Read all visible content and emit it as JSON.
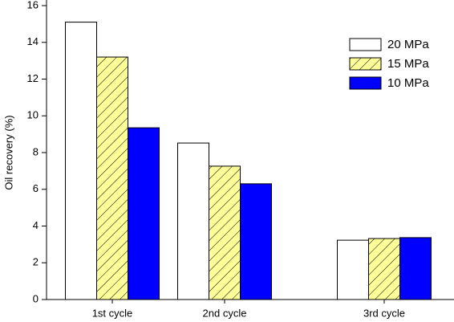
{
  "chart_data": {
    "type": "bar",
    "ylabel": "Oil recovery (%)",
    "categories": [
      "1st cycle",
      "2nd cycle",
      "3rd cycle"
    ],
    "series": [
      {
        "name": "20 MPa",
        "color": "#ffffff",
        "values": [
          15.1,
          8.52,
          3.23
        ]
      },
      {
        "name": "15 MPa",
        "color": "#ffff99",
        "pattern": "hatch",
        "values": [
          13.2,
          7.26,
          3.32
        ]
      },
      {
        "name": "10 MPa",
        "color": "#0000ff",
        "values": [
          9.35,
          6.3,
          3.37
        ]
      }
    ],
    "ylim": [
      0,
      16
    ],
    "yticks": [
      0,
      2,
      4,
      6,
      8,
      10,
      12,
      14,
      16
    ],
    "legend": "upper right"
  }
}
